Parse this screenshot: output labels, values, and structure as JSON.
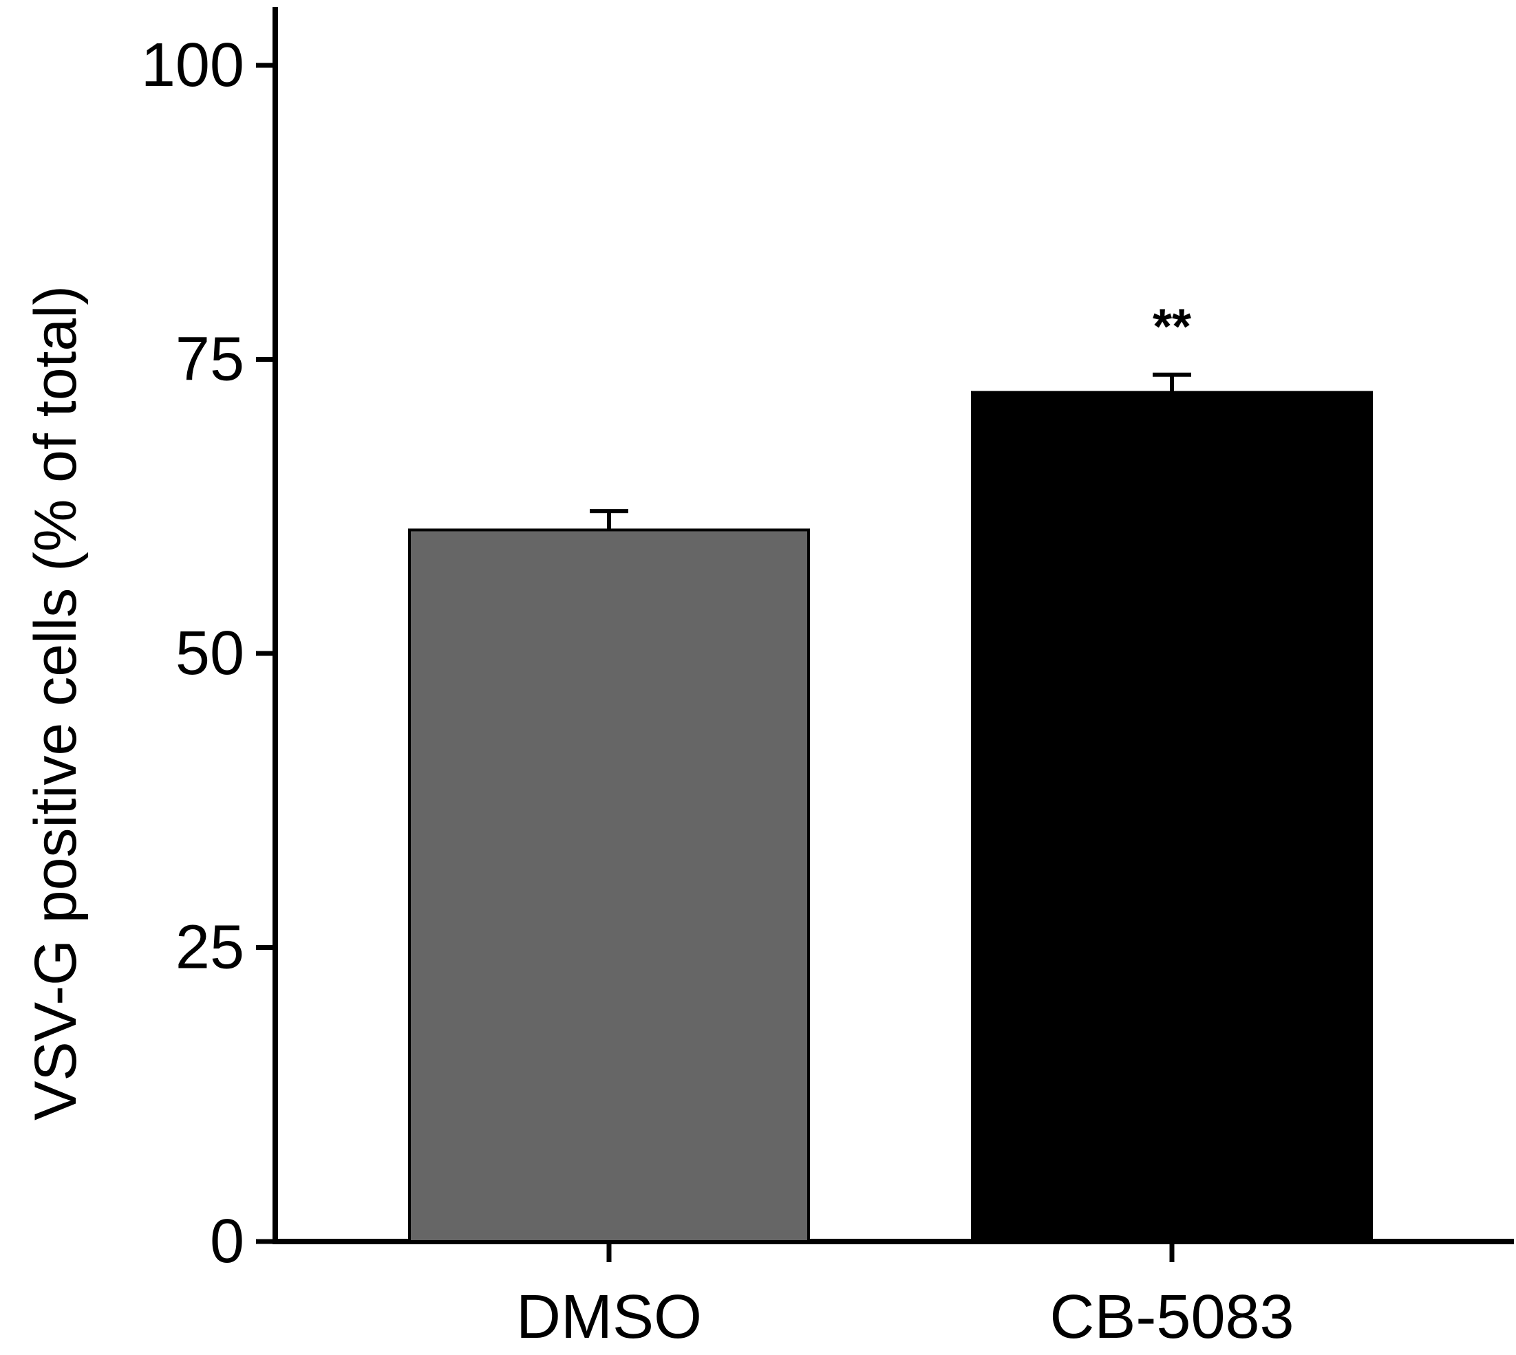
{
  "chart_data": {
    "type": "bar",
    "title": "",
    "xlabel": "",
    "ylabel": "VSV-G positive cells (% of total)",
    "categories": [
      "DMSO",
      "CB-5083"
    ],
    "values": [
      60.5,
      72.2
    ],
    "errors": [
      1.6,
      1.5
    ],
    "bar_colors": [
      "#666666",
      "#000000"
    ],
    "annotations": [
      "",
      "**"
    ],
    "ylim": [
      0,
      100
    ],
    "yticks": [
      "0",
      "25",
      "50",
      "75",
      "100"
    ],
    "grid": false,
    "legend": "none"
  }
}
